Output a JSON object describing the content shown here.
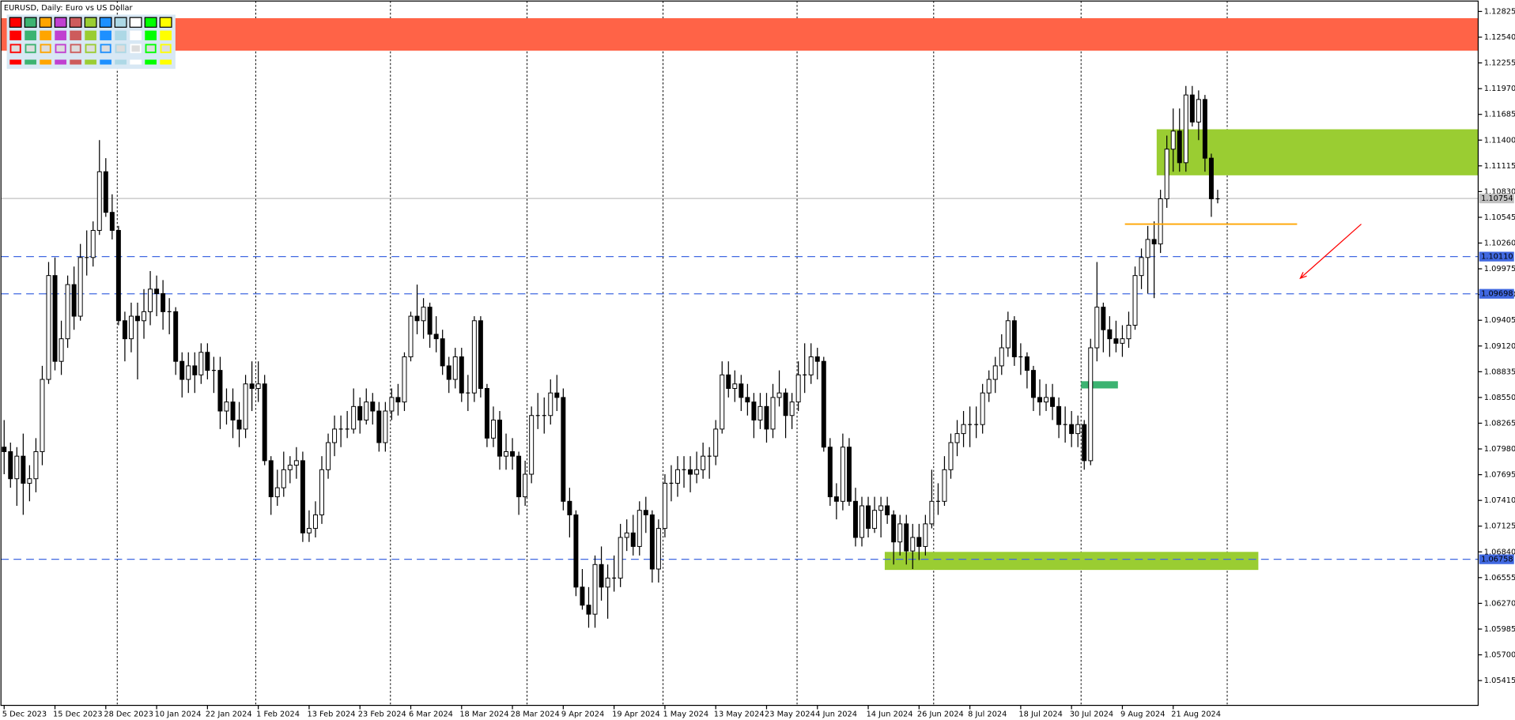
{
  "chart_data": {
    "type": "candlestick",
    "title": "EURUSD, Daily:  Euro vs US Dollar",
    "xlim": [
      -0.5,
      232
    ],
    "ylim": [
      1.0514,
      1.1294
    ],
    "yticks": [
      1.12825,
      {
        "value": 1.1254,
        "label": "1.12540"
      },
      1.12255,
      {
        "value": 1.1197,
        "label": "1.11970"
      },
      1.11685,
      {
        "value": 1.114,
        "label": "1.11400"
      },
      1.11115,
      {
        "value": 1.1083,
        "label": "1.10830"
      },
      1.10545,
      {
        "value": 1.1026,
        "label": "1.10260"
      },
      1.09975,
      {
        "value": 1.0969,
        "label": "1.09690"
      },
      1.09405,
      {
        "value": 1.0912,
        "label": "1.09120"
      },
      1.08835,
      {
        "value": 1.0855,
        "label": "1.08550"
      },
      1.08265,
      {
        "value": 1.0798,
        "label": "1.07980"
      },
      1.07695,
      {
        "value": 1.0741,
        "label": "1.07410"
      },
      1.07125,
      {
        "value": 1.0684,
        "label": "1.06840"
      },
      1.06555,
      {
        "value": 1.0627,
        "label": "1.06270"
      },
      1.05985,
      {
        "value": 1.057,
        "label": "1.05700"
      },
      1.05415
    ],
    "xticks": [
      {
        "value": 0,
        "label": "5 Dec 2023"
      },
      {
        "value": 8,
        "label": "15 Dec 2023"
      },
      {
        "value": 16,
        "label": "28 Dec 2023"
      },
      {
        "value": 24,
        "label": "10 Jan 2024"
      },
      {
        "value": 32,
        "label": "22 Jan 2024"
      },
      {
        "value": 40,
        "label": "1 Feb 2024"
      },
      {
        "value": 48,
        "label": "13 Feb 2024"
      },
      {
        "value": 56,
        "label": "23 Feb 2024"
      },
      {
        "value": 64,
        "label": "6 Mar 2024"
      },
      {
        "value": 72,
        "label": "18 Mar 2024"
      },
      {
        "value": 80,
        "label": "28 Mar 2024"
      },
      {
        "value": 88,
        "label": "9 Apr 2024"
      },
      {
        "value": 96,
        "label": "19 Apr 2024"
      },
      {
        "value": 104,
        "label": "1 May 2024"
      },
      {
        "value": 112,
        "label": "13 May 2024"
      },
      {
        "value": 120,
        "label": "23 May 2024"
      },
      {
        "value": 128,
        "label": "4 Jun 2024"
      },
      {
        "value": 136,
        "label": "14 Jun 2024"
      },
      {
        "value": 144,
        "label": "26 Jun 2024"
      },
      {
        "value": 152,
        "label": "8 Jul 2024"
      },
      {
        "value": 160,
        "label": "18 Jul 2024"
      },
      {
        "value": 168,
        "label": "30 Jul 2024"
      },
      {
        "value": 176,
        "label": "9 Aug 2024"
      },
      {
        "value": 184,
        "label": "21 Aug 2024"
      }
    ],
    "xgrid": [
      17.8,
      39.6,
      60.8,
      82.3,
      103.7,
      124.8,
      146.3,
      169.5,
      192.5
    ],
    "grid": true,
    "zones": [
      {
        "x": [
          -0.5,
          232
        ],
        "y": [
          1.1239,
          1.1275
        ],
        "color": "#ff6347"
      },
      {
        "x": [
          181.4,
          232
        ],
        "y": [
          1.1101,
          1.1152
        ],
        "color": "#9acd32"
      },
      {
        "x": [
          169.5,
          175.3
        ],
        "y": [
          1.0865,
          1.0873
        ],
        "color": "#3cb371"
      },
      {
        "x": [
          138.6,
          197.4
        ],
        "y": [
          1.0664,
          1.0684
        ],
        "color": "#9acd32"
      }
    ],
    "segments": [
      {
        "x": [
          176.4,
          203.5
        ],
        "y": [
          1.1047,
          1.1047
        ],
        "color": "#ffa500"
      }
    ],
    "arrows": [
      {
        "x": [
          213.6,
          204
        ],
        "y": [
          1.1047,
          1.0987
        ],
        "color": "#ff0000"
      }
    ],
    "hlines": [
      {
        "value": 1.1011,
        "label": "1.10110",
        "color": "#4169e1",
        "dash": true
      },
      {
        "value": 1.09698,
        "color": "#4169e1",
        "dash": true
      },
      {
        "value": 1.06758,
        "color": "#4169e1",
        "dash": true
      },
      {
        "value": 1.10754,
        "color": "#c0c0c0",
        "dash": false
      }
    ],
    "ohlc": [
      [
        1.08,
        1.083,
        1.077,
        1.0795
      ],
      [
        1.0795,
        1.0805,
        1.0755,
        1.0765
      ],
      [
        1.0765,
        1.08,
        1.0735,
        1.079
      ],
      [
        1.079,
        1.0815,
        1.0725,
        1.076
      ],
      [
        1.076,
        1.078,
        1.074,
        1.0765
      ],
      [
        1.0765,
        1.081,
        1.075,
        1.0795
      ],
      [
        1.0795,
        1.089,
        1.078,
        1.0875
      ],
      [
        1.0875,
        1.1005,
        1.087,
        1.099
      ],
      [
        1.099,
        1.101,
        1.0885,
        1.0895
      ],
      [
        1.0895,
        1.094,
        1.088,
        1.092
      ],
      [
        1.092,
        1.099,
        1.091,
        1.098
      ],
      [
        1.098,
        1.1,
        1.093,
        1.0945
      ],
      [
        1.0945,
        1.1025,
        1.094,
        1.101
      ],
      [
        1.101,
        1.104,
        1.099,
        1.101
      ],
      [
        1.101,
        1.105,
        1.1,
        1.104
      ],
      [
        1.104,
        1.114,
        1.1035,
        1.1105
      ],
      [
        1.1105,
        1.112,
        1.1055,
        1.106
      ],
      [
        1.106,
        1.108,
        1.103,
        1.104
      ],
      [
        1.104,
        1.1045,
        1.0935,
        1.094
      ],
      [
        1.094,
        1.095,
        1.0895,
        1.092
      ],
      [
        1.092,
        1.096,
        1.0905,
        1.0945
      ],
      [
        1.0945,
        1.096,
        1.0875,
        1.094
      ],
      [
        1.094,
        1.0975,
        1.092,
        1.095
      ],
      [
        1.095,
        1.0995,
        1.0935,
        1.0975
      ],
      [
        1.0975,
        1.099,
        1.0945,
        1.097
      ],
      [
        1.097,
        1.0985,
        1.093,
        1.095
      ],
      [
        1.095,
        1.0965,
        1.0925,
        1.095
      ],
      [
        1.095,
        1.0955,
        1.088,
        1.0895
      ],
      [
        1.0895,
        1.0905,
        1.0855,
        1.0875
      ],
      [
        1.0875,
        1.0905,
        1.086,
        1.089
      ],
      [
        1.089,
        1.0905,
        1.086,
        1.088
      ],
      [
        1.088,
        1.0915,
        1.087,
        1.0905
      ],
      [
        1.0905,
        1.0915,
        1.0875,
        1.0885
      ],
      [
        1.0885,
        1.09,
        1.086,
        1.0885
      ],
      [
        1.0885,
        1.09,
        1.082,
        1.084
      ],
      [
        1.084,
        1.0865,
        1.0825,
        1.085
      ],
      [
        1.085,
        1.0865,
        1.081,
        1.083
      ],
      [
        1.083,
        1.085,
        1.08,
        1.082
      ],
      [
        1.082,
        1.088,
        1.081,
        1.087
      ],
      [
        1.087,
        1.0895,
        1.084,
        1.0865
      ],
      [
        1.0865,
        1.0895,
        1.085,
        1.087
      ],
      [
        1.087,
        1.088,
        1.078,
        1.0785
      ],
      [
        1.0785,
        1.079,
        1.0725,
        1.0745
      ],
      [
        1.0745,
        1.0775,
        1.0735,
        1.0755
      ],
      [
        1.0755,
        1.0795,
        1.0745,
        1.0775
      ],
      [
        1.0775,
        1.079,
        1.076,
        1.078
      ],
      [
        1.078,
        1.08,
        1.0765,
        1.0785
      ],
      [
        1.0785,
        1.0795,
        1.0695,
        1.0705
      ],
      [
        1.0705,
        1.073,
        1.0695,
        1.071
      ],
      [
        1.071,
        1.074,
        1.07,
        1.0725
      ],
      [
        1.0725,
        1.079,
        1.0715,
        1.0775
      ],
      [
        1.0775,
        1.0815,
        1.0765,
        1.0805
      ],
      [
        1.0805,
        1.0835,
        1.079,
        1.082
      ],
      [
        1.082,
        1.0835,
        1.08,
        1.082
      ],
      [
        1.082,
        1.084,
        1.081,
        1.082
      ],
      [
        1.082,
        1.0865,
        1.0815,
        1.0845
      ],
      [
        1.0845,
        1.0855,
        1.0815,
        1.083
      ],
      [
        1.083,
        1.0865,
        1.0825,
        1.085
      ],
      [
        1.085,
        1.086,
        1.0825,
        1.084
      ],
      [
        1.084,
        1.085,
        1.0795,
        1.0805
      ],
      [
        1.0805,
        1.085,
        1.0795,
        1.084
      ],
      [
        1.084,
        1.0865,
        1.083,
        1.0855
      ],
      [
        1.0855,
        1.087,
        1.0835,
        1.085
      ],
      [
        1.085,
        1.0905,
        1.084,
        1.09
      ],
      [
        1.09,
        1.095,
        1.0895,
        1.0945
      ],
      [
        1.0945,
        1.098,
        1.0925,
        1.094
      ],
      [
        1.094,
        1.0965,
        1.092,
        1.0955
      ],
      [
        1.0955,
        1.096,
        1.091,
        1.0925
      ],
      [
        1.0925,
        1.0945,
        1.0905,
        1.092
      ],
      [
        1.092,
        1.093,
        1.088,
        1.089
      ],
      [
        1.089,
        1.09,
        1.086,
        1.0875
      ],
      [
        1.0875,
        1.091,
        1.0865,
        1.09
      ],
      [
        1.09,
        1.091,
        1.085,
        1.086
      ],
      [
        1.086,
        1.088,
        1.084,
        1.086
      ],
      [
        1.086,
        1.0945,
        1.085,
        1.094
      ],
      [
        1.094,
        1.0945,
        1.0855,
        1.0865
      ],
      [
        1.0865,
        1.087,
        1.08,
        1.081
      ],
      [
        1.081,
        1.0845,
        1.08,
        1.083
      ],
      [
        1.083,
        1.084,
        1.0775,
        1.079
      ],
      [
        1.079,
        1.0815,
        1.0775,
        1.0795
      ],
      [
        1.0795,
        1.081,
        1.0775,
        1.079
      ],
      [
        1.079,
        1.0795,
        1.0725,
        1.0745
      ],
      [
        1.0745,
        1.0785,
        1.0735,
        1.077
      ],
      [
        1.077,
        1.0845,
        1.076,
        1.0835
      ],
      [
        1.0835,
        1.086,
        1.082,
        1.0835
      ],
      [
        1.0835,
        1.0855,
        1.0815,
        1.0835
      ],
      [
        1.0835,
        1.0875,
        1.0825,
        1.086
      ],
      [
        1.086,
        1.088,
        1.084,
        1.0855
      ],
      [
        1.0855,
        1.0865,
        1.073,
        1.074
      ],
      [
        1.074,
        1.0755,
        1.07,
        1.0725
      ],
      [
        1.0725,
        1.073,
        1.0635,
        1.0645
      ],
      [
        1.0645,
        1.0665,
        1.062,
        1.0625
      ],
      [
        1.0625,
        1.0645,
        1.06,
        1.0615
      ],
      [
        1.0615,
        1.068,
        1.06,
        1.067
      ],
      [
        1.067,
        1.069,
        1.063,
        1.0645
      ],
      [
        1.0645,
        1.067,
        1.061,
        1.0655
      ],
      [
        1.0655,
        1.068,
        1.064,
        1.0655
      ],
      [
        1.0655,
        1.0715,
        1.0645,
        1.07
      ],
      [
        1.07,
        1.072,
        1.0685,
        1.0705
      ],
      [
        1.0705,
        1.0725,
        1.068,
        1.069
      ],
      [
        1.069,
        1.074,
        1.068,
        1.073
      ],
      [
        1.073,
        1.0745,
        1.0705,
        1.0725
      ],
      [
        1.0725,
        1.073,
        1.065,
        1.0665
      ],
      [
        1.0665,
        1.072,
        1.065,
        1.071
      ],
      [
        1.071,
        1.077,
        1.07,
        1.076
      ],
      [
        1.076,
        1.078,
        1.074,
        1.076
      ],
      [
        1.076,
        1.079,
        1.0745,
        1.0775
      ],
      [
        1.0775,
        1.079,
        1.0755,
        1.0775
      ],
      [
        1.0775,
        1.079,
        1.075,
        1.077
      ],
      [
        1.077,
        1.0795,
        1.076,
        1.0775
      ],
      [
        1.0775,
        1.0805,
        1.0765,
        1.079
      ],
      [
        1.079,
        1.08,
        1.0765,
        1.079
      ],
      [
        1.079,
        1.083,
        1.078,
        1.082
      ],
      [
        1.082,
        1.0895,
        1.0815,
        1.088
      ],
      [
        1.088,
        1.0895,
        1.0855,
        1.0865
      ],
      [
        1.0865,
        1.0885,
        1.085,
        1.087
      ],
      [
        1.087,
        1.088,
        1.084,
        1.0855
      ],
      [
        1.0855,
        1.087,
        1.0835,
        1.085
      ],
      [
        1.085,
        1.086,
        1.081,
        1.083
      ],
      [
        1.083,
        1.086,
        1.082,
        1.0845
      ],
      [
        1.0845,
        1.086,
        1.0805,
        1.082
      ],
      [
        1.082,
        1.087,
        1.081,
        1.0855
      ],
      [
        1.0855,
        1.0885,
        1.0845,
        1.086
      ],
      [
        1.086,
        1.0865,
        1.081,
        1.0835
      ],
      [
        1.0835,
        1.086,
        1.082,
        1.085
      ],
      [
        1.085,
        1.0895,
        1.084,
        1.088
      ],
      [
        1.088,
        1.0915,
        1.086,
        1.088
      ],
      [
        1.088,
        1.0915,
        1.087,
        1.09
      ],
      [
        1.09,
        1.091,
        1.0875,
        1.0895
      ],
      [
        1.0895,
        1.09,
        1.0795,
        1.08
      ],
      [
        1.08,
        1.081,
        1.0735,
        1.0745
      ],
      [
        1.0745,
        1.076,
        1.072,
        1.074
      ],
      [
        1.074,
        1.0815,
        1.073,
        1.08
      ],
      [
        1.08,
        1.081,
        1.0735,
        1.074
      ],
      [
        1.074,
        1.0755,
        1.069,
        1.07
      ],
      [
        1.07,
        1.0745,
        1.069,
        1.0735
      ],
      [
        1.0735,
        1.0745,
        1.07,
        1.071
      ],
      [
        1.071,
        1.0745,
        1.0705,
        1.073
      ],
      [
        1.073,
        1.0745,
        1.07,
        1.0735
      ],
      [
        1.0735,
        1.0745,
        1.0715,
        1.0725
      ],
      [
        1.0725,
        1.073,
        1.067,
        1.0695
      ],
      [
        1.0695,
        1.0725,
        1.068,
        1.0715
      ],
      [
        1.0715,
        1.0725,
        1.067,
        1.0685
      ],
      [
        1.0685,
        1.0715,
        1.0665,
        1.07
      ],
      [
        1.07,
        1.0715,
        1.0675,
        1.069
      ],
      [
        1.069,
        1.0725,
        1.068,
        1.0715
      ],
      [
        1.0715,
        1.0775,
        1.071,
        1.074
      ],
      [
        1.074,
        1.076,
        1.0725,
        1.074
      ],
      [
        1.074,
        1.079,
        1.0735,
        1.0775
      ],
      [
        1.0775,
        1.0815,
        1.0765,
        1.0805
      ],
      [
        1.0805,
        1.083,
        1.079,
        1.0815
      ],
      [
        1.0815,
        1.084,
        1.08,
        1.0825
      ],
      [
        1.0825,
        1.0845,
        1.08,
        1.0825
      ],
      [
        1.0825,
        1.0845,
        1.081,
        1.0825
      ],
      [
        1.0825,
        1.087,
        1.0815,
        1.086
      ],
      [
        1.086,
        1.0885,
        1.085,
        1.0875
      ],
      [
        1.0875,
        1.09,
        1.086,
        1.089
      ],
      [
        1.089,
        1.0925,
        1.088,
        1.091
      ],
      [
        1.091,
        1.095,
        1.09,
        1.094
      ],
      [
        1.094,
        1.0945,
        1.089,
        1.09
      ],
      [
        1.09,
        1.0915,
        1.088,
        1.09
      ],
      [
        1.09,
        1.0905,
        1.0865,
        1.0885
      ],
      [
        1.0885,
        1.089,
        1.084,
        1.0855
      ],
      [
        1.0855,
        1.0875,
        1.0835,
        1.085
      ],
      [
        1.085,
        1.087,
        1.084,
        1.0855
      ],
      [
        1.0855,
        1.087,
        1.083,
        1.0845
      ],
      [
        1.0845,
        1.0855,
        1.081,
        1.0825
      ],
      [
        1.0825,
        1.0845,
        1.0805,
        1.0825
      ],
      [
        1.0825,
        1.084,
        1.08,
        1.0815
      ],
      [
        1.0815,
        1.0835,
        1.08,
        1.0825
      ],
      [
        1.0825,
        1.083,
        1.0775,
        1.0785
      ],
      [
        1.0785,
        1.092,
        1.078,
        1.091
      ],
      [
        1.091,
        1.1005,
        1.0895,
        1.0955
      ],
      [
        1.0955,
        1.096,
        1.0905,
        1.093
      ],
      [
        1.093,
        1.0945,
        1.09,
        1.092
      ],
      [
        1.092,
        1.094,
        1.0905,
        1.0915
      ],
      [
        1.0915,
        1.0935,
        1.09,
        1.092
      ],
      [
        1.092,
        1.095,
        1.091,
        1.0935
      ],
      [
        1.0935,
        1.1,
        1.093,
        1.099
      ],
      [
        1.099,
        1.102,
        1.0975,
        1.101
      ],
      [
        1.101,
        1.1045,
        1.097,
        1.103
      ],
      [
        1.103,
        1.105,
        1.0965,
        1.1025
      ],
      [
        1.1025,
        1.1085,
        1.1015,
        1.1075
      ],
      [
        1.1075,
        1.1145,
        1.1065,
        1.113
      ],
      [
        1.113,
        1.1175,
        1.1105,
        1.115
      ],
      [
        1.115,
        1.1175,
        1.1105,
        1.1115
      ],
      [
        1.1115,
        1.12,
        1.1105,
        1.119
      ],
      [
        1.119,
        1.12,
        1.1155,
        1.116
      ],
      [
        1.116,
        1.1195,
        1.114,
        1.1185
      ],
      [
        1.1185,
        1.119,
        1.1105,
        1.112
      ],
      [
        1.112,
        1.1125,
        1.1055,
        1.1075
      ],
      [
        1.1075,
        1.1085,
        1.107,
        1.1075
      ]
    ]
  }
}
